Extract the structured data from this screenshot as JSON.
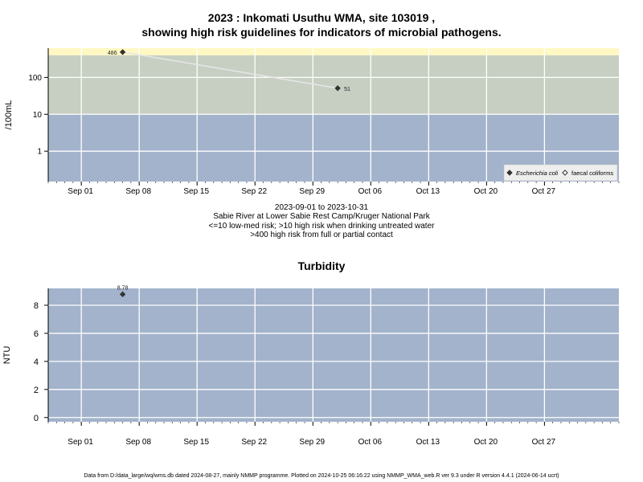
{
  "chart_data": [
    {
      "type": "scatter",
      "title_line1": "2023 : Inkomati Usuthu WMA, site 103019 ,",
      "title_line2": "showing high risk guidelines for indicators of microbial pathogens.",
      "ylabel": "/100mL",
      "y_scale": "log",
      "ylim": [
        0.15,
        620
      ],
      "y_ticks": [
        {
          "value": 1,
          "label": "1"
        },
        {
          "value": 10,
          "label": "10"
        },
        {
          "value": 100,
          "label": "100"
        }
      ],
      "xlim": [
        "2023-08-28",
        "2023-11-05"
      ],
      "x_ticks": [
        {
          "date": "2023-09-01",
          "label": "Sep 01"
        },
        {
          "date": "2023-09-08",
          "label": "Sep 08"
        },
        {
          "date": "2023-09-15",
          "label": "Sep 15"
        },
        {
          "date": "2023-09-22",
          "label": "Sep 22"
        },
        {
          "date": "2023-09-29",
          "label": "Sep 29"
        },
        {
          "date": "2023-10-06",
          "label": "Oct 06"
        },
        {
          "date": "2023-10-13",
          "label": "Oct 13"
        },
        {
          "date": "2023-10-20",
          "label": "Oct 20"
        },
        {
          "date": "2023-10-27",
          "label": "Oct 27"
        }
      ],
      "bands": [
        {
          "from": 0.15,
          "to": 10,
          "color": "#a3b3cc"
        },
        {
          "from": 10,
          "to": 400,
          "color": "#c6cfc2"
        },
        {
          "from": 400,
          "to": 620,
          "color": "#fff8c2"
        }
      ],
      "series": [
        {
          "name": "Escherichia coli",
          "marker": "filled-diamond",
          "color": "#333333",
          "points": [
            {
              "date": "2023-09-06",
              "value": 486,
              "label": "486"
            },
            {
              "date": "2023-10-02",
              "value": 51,
              "label": "51"
            }
          ]
        },
        {
          "name": "faecal coliforms",
          "marker": "open-diamond",
          "color": "#333333",
          "points": []
        }
      ],
      "legend_position": "bottom-right",
      "grid": true,
      "caption_lines": [
        "2023-09-01 to 2023-10-31",
        "Sabie River at Lower Sabie Rest Camp/Kruger National Park",
        "<=10 low-med risk; >10 high risk when drinking untreated water",
        ">400 high risk from full or partial contact"
      ]
    },
    {
      "type": "scatter",
      "title": "Turbidity",
      "ylabel": "NTU",
      "ylim": [
        -0.3,
        9.2
      ],
      "y_ticks": [
        {
          "value": 0,
          "label": "0"
        },
        {
          "value": 2,
          "label": "2"
        },
        {
          "value": 4,
          "label": "4"
        },
        {
          "value": 6,
          "label": "6"
        },
        {
          "value": 8,
          "label": "8"
        }
      ],
      "xlim": [
        "2023-08-28",
        "2023-11-05"
      ],
      "x_ticks": [
        {
          "date": "2023-09-01",
          "label": "Sep 01"
        },
        {
          "date": "2023-09-08",
          "label": "Sep 08"
        },
        {
          "date": "2023-09-15",
          "label": "Sep 15"
        },
        {
          "date": "2023-09-22",
          "label": "Sep 22"
        },
        {
          "date": "2023-09-29",
          "label": "Sep 29"
        },
        {
          "date": "2023-10-06",
          "label": "Oct 06"
        },
        {
          "date": "2023-10-13",
          "label": "Oct 13"
        },
        {
          "date": "2023-10-20",
          "label": "Oct 20"
        },
        {
          "date": "2023-10-27",
          "label": "Oct 27"
        }
      ],
      "background_color": "#a3b3cc",
      "series": [
        {
          "marker": "filled-diamond",
          "color": "#333333",
          "points": [
            {
              "date": "2023-09-06",
              "value": 8.78,
              "label": "8.78"
            }
          ]
        }
      ],
      "grid": true
    }
  ],
  "footer": "Data from D:/data_large/wq/wms.db dated 2024-08-27, mainly NMMP programme. Plotted on 2024-10-25 06:16:22 using NMMP_WMA_web.R ver 9.3 under R version 4.4.1 (2024-06-14 ucrt)"
}
